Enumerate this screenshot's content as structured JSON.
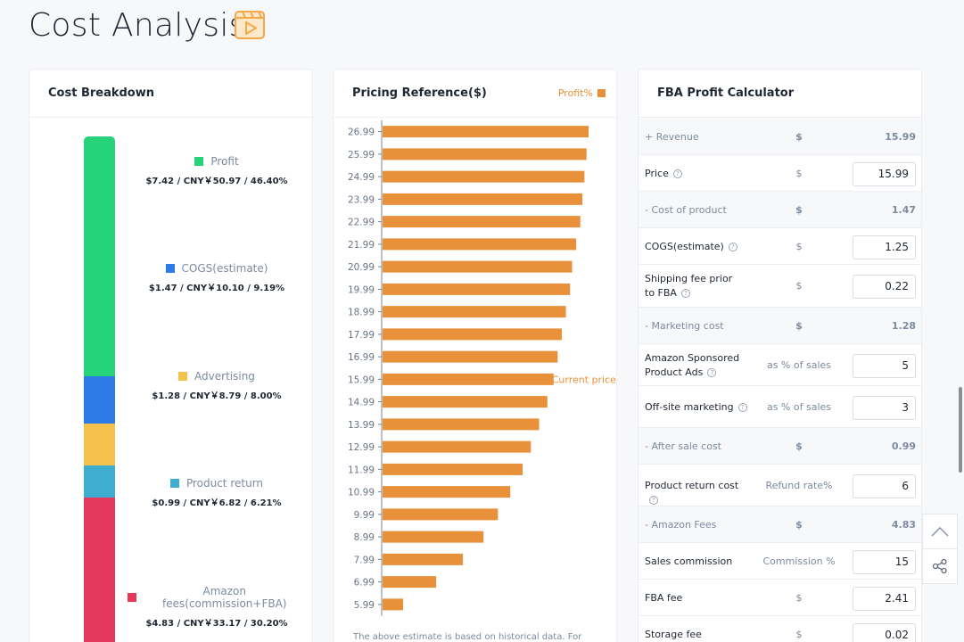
{
  "page": {
    "title": "Cost Analysis"
  },
  "cost_breakdown": {
    "title": "Cost Breakdown",
    "segments": [
      {
        "name": "Profit",
        "value": "$7.42 / CNY￥50.97 / 46.40%",
        "percent": 46.4,
        "color": "#27d37a"
      },
      {
        "name": "COGS(estimate)",
        "value": "$1.47 / CNY￥10.10 / 9.19%",
        "percent": 9.19,
        "color": "#2f7be5"
      },
      {
        "name": "Advertising",
        "value": "$1.28 / CNY￥8.79 / 8.00%",
        "percent": 8.0,
        "color": "#f4c24c"
      },
      {
        "name": "Product return",
        "value": "$0.99 / CNY￥6.82 / 6.21%",
        "percent": 6.21,
        "color": "#3fadd0"
      },
      {
        "name": "Amazon fees(commission+FBA)",
        "value": "$4.83 / CNY￥33.17 / 30.20%",
        "percent": 30.2,
        "color": "#e5395c"
      }
    ]
  },
  "pricing": {
    "title": "Pricing Reference($)",
    "legend": "Profit%",
    "note": "The above estimate is based on historical data. For",
    "annotation": "Current price",
    "chart_data": {
      "type": "bar",
      "orientation": "horizontal",
      "categories": [
        "26.99",
        "25.99",
        "24.99",
        "23.99",
        "22.99",
        "21.99",
        "20.99",
        "19.99",
        "18.99",
        "17.99",
        "16.99",
        "15.99",
        "14.99",
        "13.99",
        "12.99",
        "11.99",
        "10.99",
        "9.99",
        "8.99",
        "7.99",
        "6.99",
        "5.99"
      ],
      "series": [
        {
          "name": "Profit%",
          "values": [
            100,
            99,
            98,
            97,
            96,
            94,
            92,
            91,
            89,
            87,
            85,
            83,
            80,
            76,
            72,
            68,
            62,
            56,
            49,
            39,
            26,
            10
          ]
        }
      ],
      "highlight_category": "15.99",
      "color": "#e8913a"
    }
  },
  "calculator": {
    "title": "FBA Profit Calculator",
    "rows": [
      {
        "type": "section",
        "label": "+ Revenue",
        "mid": "$",
        "right": "15.99"
      },
      {
        "type": "input",
        "label": "Price",
        "help": "?",
        "mid": "$",
        "value": "15.99"
      },
      {
        "type": "section",
        "label": "- Cost of product",
        "mid": "$",
        "right": "1.47"
      },
      {
        "type": "input",
        "label": "COGS(estimate)",
        "help": "?",
        "mid": "$",
        "value": "1.25"
      },
      {
        "type": "input",
        "label": "Shipping fee prior to FBA",
        "help": "?",
        "mid": "$",
        "value": "0.22"
      },
      {
        "type": "section",
        "label": "- Marketing cost",
        "mid": "$",
        "right": "1.28"
      },
      {
        "type": "input",
        "label": "Amazon Sponsored Product Ads",
        "help": "?",
        "mid": "as % of sales",
        "value": "5"
      },
      {
        "type": "input",
        "label": "Off-site marketing",
        "help": "?",
        "mid": "as % of sales",
        "value": "3"
      },
      {
        "type": "section",
        "label": "- After sale cost",
        "mid": "$",
        "right": "0.99"
      },
      {
        "type": "input",
        "label": "Product return cost",
        "help": "?",
        "mid": "Refund rate%",
        "value": "6"
      },
      {
        "type": "section",
        "label": "- Amazon Fees",
        "mid": "$",
        "right": "4.83"
      },
      {
        "type": "input",
        "label": "Sales commission",
        "help": "",
        "mid": "Commission %",
        "value": "15"
      },
      {
        "type": "input",
        "label": "FBA fee",
        "help": "",
        "mid": "$",
        "value": "2.41"
      },
      {
        "type": "input",
        "label": "Storage fee",
        "help": "",
        "mid": "$",
        "value": "0.02"
      }
    ]
  },
  "icons": {
    "title_icon": "video-play-icon",
    "back_to_top": "chevron-up-icon",
    "share": "share-icon"
  }
}
